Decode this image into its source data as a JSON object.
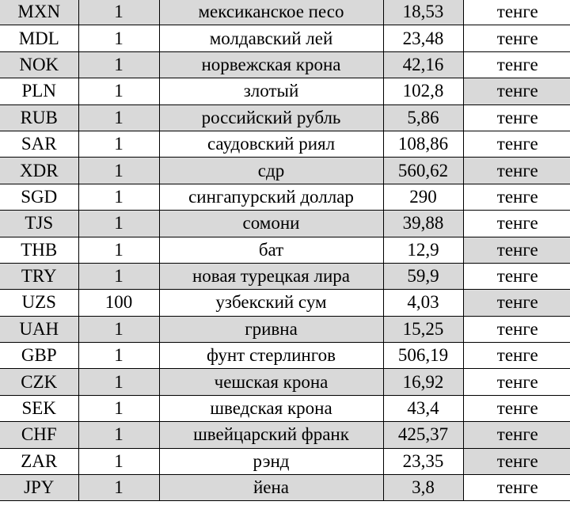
{
  "colors": {
    "highlight": "#d9d9d9",
    "border": "#000000"
  },
  "rows": [
    {
      "code": "MXN",
      "units": "1",
      "name": "мексиканское песо",
      "rate": "18,53",
      "currency": "тенге",
      "row_gray": true,
      "last_gray": false
    },
    {
      "code": "MDL",
      "units": "1",
      "name": "молдавский лей",
      "rate": "23,48",
      "currency": "тенге",
      "row_gray": false,
      "last_gray": false
    },
    {
      "code": "NOK",
      "units": "1",
      "name": "норвежская крона",
      "rate": "42,16",
      "currency": "тенге",
      "row_gray": true,
      "last_gray": false
    },
    {
      "code": "PLN",
      "units": "1",
      "name": "злотый",
      "rate": "102,8",
      "currency": "тенге",
      "row_gray": false,
      "last_gray": true
    },
    {
      "code": "RUB",
      "units": "1",
      "name": "российский рубль",
      "rate": "5,86",
      "currency": "тенге",
      "row_gray": true,
      "last_gray": false
    },
    {
      "code": "SAR",
      "units": "1",
      "name": "саудовский риял",
      "rate": "108,86",
      "currency": "тенге",
      "row_gray": false,
      "last_gray": false
    },
    {
      "code": "XDR",
      "units": "1",
      "name": "сдр",
      "rate": "560,62",
      "currency": "тенге",
      "row_gray": true,
      "last_gray": true
    },
    {
      "code": "SGD",
      "units": "1",
      "name": "сингапурский доллар",
      "rate": "290",
      "currency": "тенге",
      "row_gray": false,
      "last_gray": false
    },
    {
      "code": "TJS",
      "units": "1",
      "name": "сомони",
      "rate": "39,88",
      "currency": "тенге",
      "row_gray": true,
      "last_gray": false
    },
    {
      "code": "THB",
      "units": "1",
      "name": "бат",
      "rate": "12,9",
      "currency": "тенге",
      "row_gray": false,
      "last_gray": true
    },
    {
      "code": "TRY",
      "units": "1",
      "name": "новая турецкая лира",
      "rate": "59,9",
      "currency": "тенге",
      "row_gray": true,
      "last_gray": false
    },
    {
      "code": "UZS",
      "units": "100",
      "name": "узбекский сум",
      "rate": "4,03",
      "currency": "тенге",
      "row_gray": false,
      "last_gray": true
    },
    {
      "code": "UAH",
      "units": "1",
      "name": "гривна",
      "rate": "15,25",
      "currency": "тенге",
      "row_gray": true,
      "last_gray": false
    },
    {
      "code": "GBP",
      "units": "1",
      "name": "фунт стерлингов",
      "rate": "506,19",
      "currency": "тенге",
      "row_gray": false,
      "last_gray": false
    },
    {
      "code": "CZK",
      "units": "1",
      "name": "чешская крона",
      "rate": "16,92",
      "currency": "тенге",
      "row_gray": true,
      "last_gray": false
    },
    {
      "code": "SEK",
      "units": "1",
      "name": "шведская крона",
      "rate": "43,4",
      "currency": "тенге",
      "row_gray": false,
      "last_gray": false
    },
    {
      "code": "CHF",
      "units": "1",
      "name": "швейцарский франк",
      "rate": "425,37",
      "currency": "тенге",
      "row_gray": true,
      "last_gray": true
    },
    {
      "code": "ZAR",
      "units": "1",
      "name": "рэнд",
      "rate": "23,35",
      "currency": "тенге",
      "row_gray": false,
      "last_gray": true
    },
    {
      "code": "JPY",
      "units": "1",
      "name": "йена",
      "rate": "3,8",
      "currency": "тенге",
      "row_gray": true,
      "last_gray": false
    }
  ]
}
